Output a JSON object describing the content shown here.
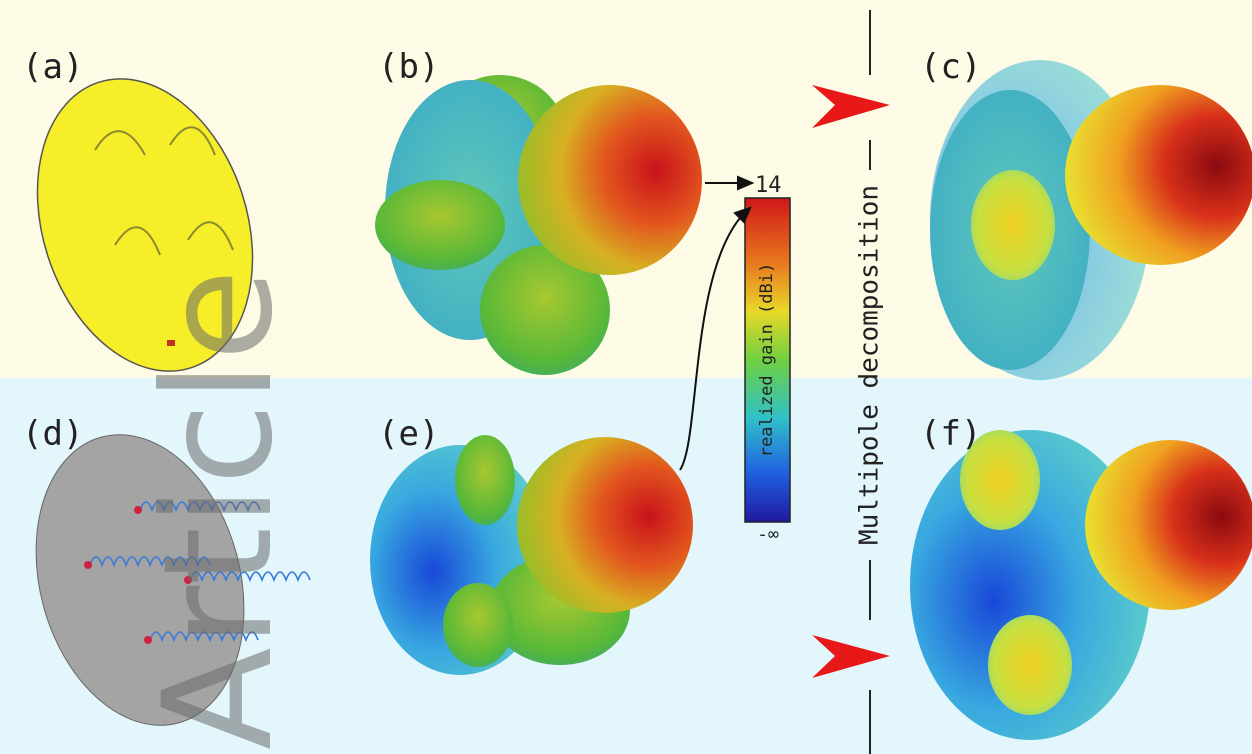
{
  "panels": [
    {
      "label": "(a)"
    },
    {
      "label": "(b)"
    },
    {
      "label": "(c)"
    },
    {
      "label": "(d)"
    },
    {
      "label": "(e)"
    },
    {
      "label": "(f)"
    }
  ],
  "colorbar": {
    "max_label": "14",
    "min_label": "-∞",
    "title": "realized gain (dBi)"
  },
  "side_label": "Multipole decomposition",
  "watermark": "Article"
}
